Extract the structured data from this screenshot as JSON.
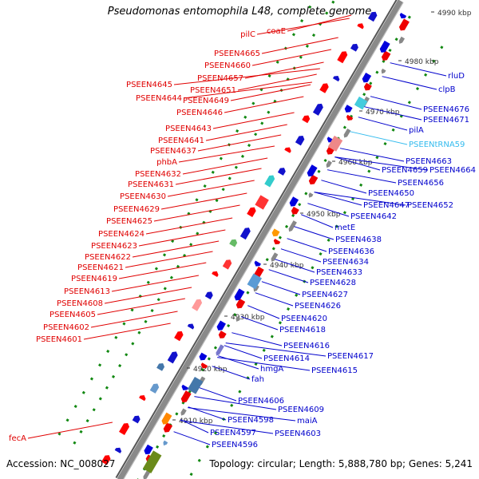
{
  "title": "Pseudomonas entomophila L48, complete genome",
  "footer": {
    "accession": "Accession: NC_008027",
    "summary": "Topology: circular; Length: 5,888,780 bp; Genes: 5,241"
  },
  "colors": {
    "label_left": "#e00000",
    "label_right": "#0000cc",
    "label_trna": "#33bbee",
    "backbone": "#8a8a8a",
    "tick_dots": "#118811"
  },
  "kbp_ticks": [
    "4910 kbp",
    "4920 kbp",
    "4930 kbp",
    "4940 kbp",
    "4950 kbp",
    "4960 kbp",
    "4970 kbp",
    "4980 kbp",
    "4990 kbp"
  ],
  "left_labels": [
    "pilC",
    "coaE",
    "PSEEN4665",
    "PSEEN4660",
    "PSEEN4657",
    "PSEEN4651",
    "PSEEN4645",
    "PSEEN4644",
    "PSEEN4649",
    "PSEEN4646",
    "PSEEN4643",
    "PSEEN4641",
    "PSEEN4637",
    "phbA",
    "PSEEN4632",
    "PSEEN4631",
    "PSEEN4630",
    "PSEEN4629",
    "PSEEN4625",
    "PSEEN4624",
    "PSEEN4623",
    "PSEEN4622",
    "PSEEN4621",
    "PSEEN4619",
    "PSEEN4613",
    "PSEEN4608",
    "PSEEN4605",
    "PSEEN4602",
    "PSEEN4601",
    "fecA"
  ],
  "right_labels": [
    "rluD",
    "clpB",
    "PSEEN4676",
    "PSEEN4671",
    "pilA",
    "PSEENtRNA59",
    "PSEEN4663",
    "PSEEN4659",
    "PSEEN4664",
    "PSEEN4656",
    "PSEEN4650",
    "PSEEN4647",
    "PSEEN4652",
    "PSEEN4642",
    "metE",
    "PSEEN4638",
    "PSEEN4636",
    "PSEEN4634",
    "PSEEN4633",
    "PSEEN4628",
    "PSEEN4627",
    "PSEEN4626",
    "PSEEN4620",
    "PSEEN4618",
    "PSEEN4616",
    "PSEEN4617",
    "PSEEN4614",
    "PSEEN4615",
    "hmgA",
    "fah",
    "PSEEN4606",
    "PSEEN4609",
    "maiA",
    "PSEEN4598",
    "PSEEN4603",
    "PSEEN4597",
    "PSEEN4596"
  ]
}
